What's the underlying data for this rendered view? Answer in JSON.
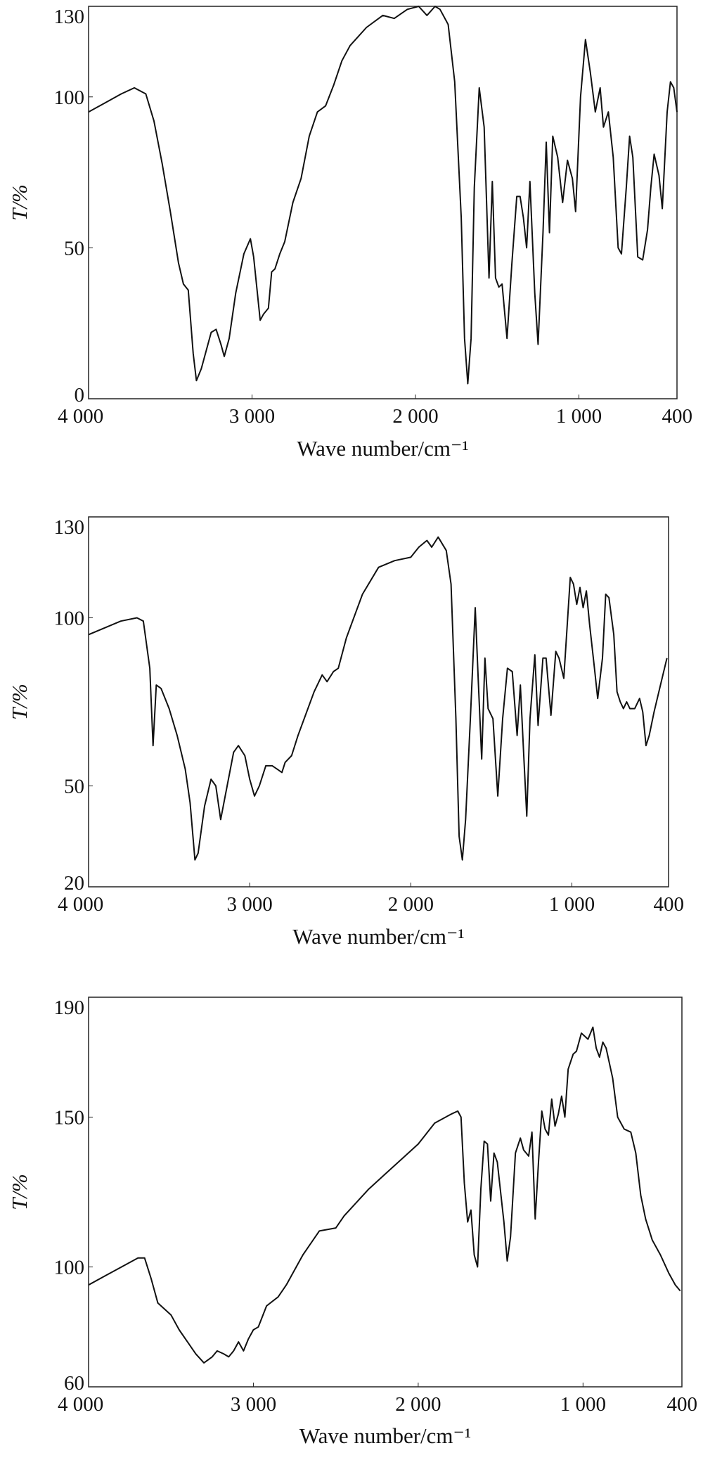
{
  "chart_data": [
    {
      "type": "line",
      "xlabel": "Wave number/cm⁻¹",
      "ylabel": "T/%",
      "color": "#111111",
      "xlim": [
        4000,
        400
      ],
      "ylim": [
        0,
        130
      ],
      "xticks": [
        {
          "value": 4000,
          "label": "4 000"
        },
        {
          "value": 3000,
          "label": "3 000"
        },
        {
          "value": 2000,
          "label": "2 000"
        },
        {
          "value": 1000,
          "label": "1 000"
        },
        400
      ],
      "yticks": [
        0,
        50,
        100,
        130
      ],
      "x": [
        4000,
        3900,
        3800,
        3720,
        3650,
        3600,
        3550,
        3500,
        3450,
        3420,
        3390,
        3360,
        3340,
        3310,
        3250,
        3220,
        3190,
        3170,
        3140,
        3100,
        3050,
        3010,
        2990,
        2950,
        2930,
        2900,
        2880,
        2860,
        2830,
        2800,
        2750,
        2700,
        2650,
        2600,
        2550,
        2500,
        2450,
        2400,
        2300,
        2200,
        2130,
        2050,
        1980,
        1930,
        1880,
        1850,
        1800,
        1760,
        1720,
        1700,
        1680,
        1660,
        1640,
        1610,
        1580,
        1550,
        1530,
        1510,
        1490,
        1470,
        1440,
        1410,
        1380,
        1360,
        1340,
        1320,
        1300,
        1270,
        1250,
        1220,
        1200,
        1180,
        1160,
        1130,
        1100,
        1070,
        1040,
        1020,
        990,
        960,
        930,
        900,
        870,
        850,
        820,
        790,
        760,
        740,
        710,
        690,
        670,
        640,
        610,
        580,
        560,
        540,
        510,
        490,
        460,
        440,
        420,
        400
      ],
      "values": [
        95,
        98,
        101,
        103,
        101,
        92,
        78,
        62,
        45,
        38,
        36,
        15,
        6,
        10,
        22,
        23,
        18,
        14,
        20,
        35,
        48,
        53,
        47,
        26,
        28,
        30,
        42,
        43,
        48,
        52,
        65,
        73,
        87,
        95,
        97,
        104,
        112,
        117,
        123,
        127,
        126,
        129,
        130,
        127,
        130,
        129,
        124,
        105,
        60,
        20,
        5,
        20,
        70,
        103,
        90,
        40,
        72,
        40,
        37,
        38,
        20,
        45,
        67,
        67,
        60,
        50,
        72,
        35,
        18,
        55,
        85,
        55,
        87,
        80,
        65,
        79,
        73,
        62,
        100,
        119,
        108,
        95,
        103,
        90,
        95,
        80,
        50,
        48,
        70,
        87,
        80,
        47,
        46,
        56,
        70,
        81,
        74,
        63,
        95,
        105,
        103,
        95
      ]
    },
    {
      "type": "line",
      "xlabel": "Wave number/cm⁻¹",
      "ylabel": "T/%",
      "color": "#111111",
      "xlim": [
        4000,
        400
      ],
      "ylim": [
        20,
        130
      ],
      "xticks": [
        {
          "value": 4000,
          "label": "4 000"
        },
        {
          "value": 3000,
          "label": "3 000"
        },
        {
          "value": 2000,
          "label": "2 000"
        },
        {
          "value": 1000,
          "label": "1 000"
        },
        400
      ],
      "yticks": [
        20,
        50,
        100,
        130
      ],
      "x": [
        4000,
        3900,
        3800,
        3700,
        3660,
        3620,
        3600,
        3580,
        3550,
        3500,
        3450,
        3400,
        3370,
        3340,
        3320,
        3280,
        3240,
        3210,
        3180,
        3140,
        3100,
        3070,
        3030,
        3000,
        2970,
        2940,
        2900,
        2860,
        2830,
        2800,
        2780,
        2740,
        2700,
        2600,
        2550,
        2520,
        2480,
        2450,
        2400,
        2300,
        2200,
        2100,
        2000,
        1950,
        1900,
        1870,
        1830,
        1780,
        1750,
        1720,
        1700,
        1680,
        1660,
        1630,
        1600,
        1580,
        1560,
        1540,
        1520,
        1490,
        1460,
        1430,
        1400,
        1370,
        1340,
        1320,
        1300,
        1280,
        1260,
        1230,
        1210,
        1180,
        1160,
        1130,
        1100,
        1080,
        1050,
        1010,
        990,
        970,
        950,
        930,
        910,
        890,
        860,
        840,
        810,
        790,
        770,
        740,
        720,
        700,
        680,
        660,
        640,
        610,
        580,
        560,
        540,
        520,
        490,
        450,
        410
      ],
      "values": [
        95,
        97,
        99,
        100,
        99,
        85,
        62,
        80,
        79,
        73,
        65,
        55,
        45,
        28,
        30,
        44,
        52,
        50,
        40,
        50,
        60,
        62,
        59,
        52,
        47,
        50,
        56,
        56,
        55,
        54,
        57,
        59,
        65,
        78,
        83,
        81,
        84,
        85,
        94,
        107,
        115,
        117,
        118,
        121,
        123,
        121,
        124,
        120,
        110,
        70,
        35,
        28,
        40,
        70,
        103,
        80,
        58,
        88,
        73,
        70,
        47,
        70,
        85,
        84,
        65,
        80,
        60,
        41,
        70,
        89,
        68,
        88,
        88,
        71,
        90,
        88,
        82,
        112,
        110,
        104,
        109,
        103,
        108,
        98,
        85,
        76,
        88,
        107,
        106,
        95,
        78,
        75,
        73,
        75,
        73,
        73,
        76,
        72,
        62,
        65,
        72,
        80,
        88
      ]
    },
    {
      "type": "line",
      "xlabel": "Wave number/cm⁻¹",
      "ylabel": "T/%",
      "color": "#111111",
      "xlim": [
        4000,
        400
      ],
      "ylim": [
        60,
        190
      ],
      "xticks": [
        {
          "value": 4000,
          "label": "4 000"
        },
        {
          "value": 3000,
          "label": "3 000"
        },
        {
          "value": 2000,
          "label": "2 000"
        },
        {
          "value": 1000,
          "label": "1 000"
        },
        400
      ],
      "yticks": [
        60,
        100,
        150,
        190
      ],
      "x": [
        4000,
        3900,
        3800,
        3700,
        3660,
        3620,
        3580,
        3500,
        3450,
        3400,
        3350,
        3300,
        3250,
        3220,
        3180,
        3150,
        3120,
        3090,
        3060,
        3030,
        3000,
        2970,
        2920,
        2850,
        2800,
        2700,
        2600,
        2500,
        2450,
        2400,
        2300,
        2200,
        2100,
        2000,
        1900,
        1800,
        1760,
        1740,
        1720,
        1700,
        1680,
        1660,
        1640,
        1620,
        1600,
        1580,
        1560,
        1540,
        1520,
        1480,
        1460,
        1440,
        1410,
        1380,
        1360,
        1330,
        1310,
        1290,
        1270,
        1250,
        1230,
        1210,
        1190,
        1170,
        1150,
        1130,
        1110,
        1090,
        1060,
        1040,
        1010,
        990,
        970,
        940,
        920,
        900,
        880,
        860,
        820,
        790,
        750,
        710,
        680,
        650,
        620,
        580,
        530,
        480,
        440,
        410
      ],
      "values": [
        94,
        97,
        100,
        103,
        103,
        96,
        88,
        84,
        79,
        75,
        71,
        68,
        70,
        72,
        71,
        70,
        72,
        75,
        72,
        76,
        79,
        80,
        87,
        90,
        94,
        104,
        112,
        113,
        117,
        120,
        126,
        131,
        136,
        141,
        148,
        151,
        152,
        150,
        128,
        115,
        119,
        104,
        100,
        126,
        142,
        141,
        122,
        138,
        135,
        115,
        102,
        110,
        138,
        143,
        139,
        137,
        145,
        116,
        135,
        152,
        146,
        144,
        156,
        147,
        151,
        157,
        150,
        166,
        171,
        172,
        178,
        177,
        176,
        180,
        173,
        170,
        175,
        173,
        163,
        150,
        146,
        145,
        138,
        124,
        116,
        109,
        104,
        98,
        94,
        92
      ]
    }
  ]
}
